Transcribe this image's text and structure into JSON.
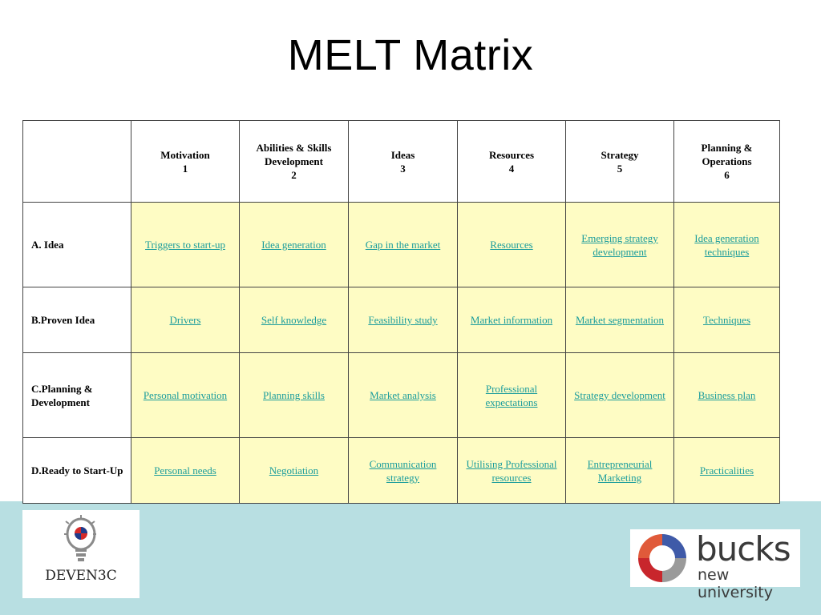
{
  "title": "MELT Matrix",
  "columns": [
    {
      "name": "Motivation",
      "num": "1"
    },
    {
      "name": "Abilities & Skills Development",
      "num": "2"
    },
    {
      "name": "Ideas",
      "num": "3"
    },
    {
      "name": "Resources",
      "num": "4"
    },
    {
      "name": "Strategy",
      "num": "5"
    },
    {
      "name": "Planning & Operations",
      "num": "6"
    }
  ],
  "rows": [
    {
      "label": "A. Idea",
      "cells": [
        "Triggers to start-up",
        "Idea generation",
        "Gap in the market",
        "Resources",
        "Emerging strategy development",
        "Idea generation techniques"
      ]
    },
    {
      "label": "B.Proven Idea",
      "cells": [
        "Drivers",
        "Self knowledge",
        "Feasibility study",
        "Market information",
        "Market segmentation",
        "Techniques"
      ]
    },
    {
      "label": "C.Planning & Development",
      "cells": [
        "Personal motivation",
        "Planning skills",
        "Market analysis",
        "Professional expectations",
        "Strategy development",
        "Business plan"
      ]
    },
    {
      "label": "D.Ready to Start-Up",
      "cells": [
        "Personal needs",
        "Negotiation",
        "Communication strategy",
        "Utilising Professional resources",
        "Entrepreneurial Marketing",
        "Practicalities"
      ]
    }
  ],
  "logos": {
    "left": "DEVEN3C",
    "right_main": "bucks",
    "right_sub": "new university"
  },
  "colors": {
    "cell_bg": "#fefcc4",
    "link": "#1a9c9c",
    "band": "#b8dfe2"
  }
}
